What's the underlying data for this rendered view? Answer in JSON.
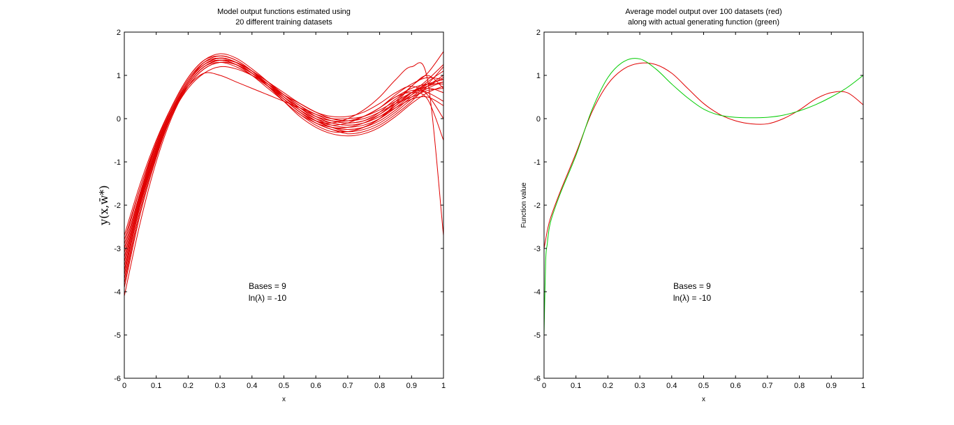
{
  "chart_data": [
    {
      "type": "line",
      "title_lines": [
        "Model output functions estimated using",
        "20 different training datasets"
      ],
      "xlabel": "x",
      "ylabel": "y(x,w̄*)",
      "xlim": [
        0,
        1
      ],
      "ylim": [
        -6,
        2
      ],
      "xticks": [
        0,
        0.1,
        0.2,
        0.3,
        0.4,
        0.5,
        0.6,
        0.7,
        0.8,
        0.9,
        1
      ],
      "xtick_labels": [
        "0",
        "0.1",
        "0.2",
        "0.3",
        "0.4",
        "0.5",
        "0.6",
        "0.7",
        "0.8",
        "0.9",
        "1"
      ],
      "yticks": [
        -6,
        -5,
        -4,
        -3,
        -2,
        -1,
        0,
        1,
        2
      ],
      "ytick_labels": [
        "-6",
        "-5",
        "-4",
        "-3",
        "-2",
        "-1",
        "0",
        "1",
        "2"
      ],
      "grid": false,
      "annotations": [
        "Bases = 9",
        "ln(λ) = -10"
      ],
      "series_color": "#e00000",
      "x": [
        0,
        0.05,
        0.1,
        0.15,
        0.2,
        0.25,
        0.3,
        0.35,
        0.4,
        0.45,
        0.5,
        0.55,
        0.6,
        0.65,
        0.7,
        0.75,
        0.8,
        0.85,
        0.9,
        0.95,
        1
      ],
      "series": [
        {
          "values": [
            -3.9,
            -2.2,
            -0.9,
            0.15,
            0.85,
            1.25,
            1.35,
            1.25,
            1.05,
            0.8,
            0.5,
            0.25,
            0.05,
            -0.05,
            -0.1,
            -0.05,
            0.15,
            0.45,
            0.65,
            0.6,
            0.4
          ]
        },
        {
          "values": [
            -2.7,
            -1.5,
            -0.5,
            0.3,
            0.95,
            1.35,
            1.45,
            1.35,
            1.1,
            0.8,
            0.45,
            0.15,
            -0.05,
            -0.15,
            -0.1,
            0.05,
            0.25,
            0.5,
            0.7,
            0.8,
            0.8
          ]
        },
        {
          "values": [
            -3.3,
            -1.9,
            -0.7,
            0.2,
            0.85,
            1.25,
            1.4,
            1.3,
            1.05,
            0.75,
            0.45,
            0.15,
            -0.05,
            -0.1,
            0.0,
            0.2,
            0.5,
            0.9,
            1.2,
            0.9,
            -2.7
          ]
        },
        {
          "values": [
            -4.1,
            -2.4,
            -1.0,
            0.05,
            0.75,
            1.15,
            1.3,
            1.25,
            1.05,
            0.8,
            0.55,
            0.35,
            0.15,
            0.0,
            -0.05,
            0.05,
            0.25,
            0.5,
            0.6,
            0.45,
            -0.5
          ]
        },
        {
          "values": [
            -3.0,
            -1.7,
            -0.6,
            0.25,
            0.9,
            1.3,
            1.4,
            1.3,
            1.05,
            0.75,
            0.4,
            0.1,
            -0.15,
            -0.3,
            -0.3,
            -0.2,
            0.0,
            0.35,
            0.75,
            1.05,
            1.55
          ]
        },
        {
          "values": [
            -3.6,
            -2.0,
            -0.8,
            0.1,
            0.75,
            1.15,
            1.3,
            1.25,
            1.05,
            0.8,
            0.55,
            0.3,
            0.1,
            -0.05,
            -0.1,
            -0.05,
            0.1,
            0.35,
            0.6,
            0.8,
            1.2
          ]
        },
        {
          "values": [
            -3.2,
            -1.8,
            -0.7,
            0.2,
            0.85,
            1.25,
            1.35,
            1.25,
            1.0,
            0.7,
            0.4,
            0.1,
            -0.1,
            -0.25,
            -0.35,
            -0.3,
            -0.15,
            0.1,
            0.4,
            0.75,
            1.0
          ]
        },
        {
          "values": [
            -3.8,
            -2.1,
            -0.85,
            0.1,
            0.8,
            1.2,
            1.35,
            1.3,
            1.1,
            0.85,
            0.55,
            0.3,
            0.05,
            -0.1,
            -0.15,
            -0.1,
            0.05,
            0.3,
            0.55,
            0.75,
            0.95
          ]
        },
        {
          "values": [
            -2.9,
            -1.6,
            -0.55,
            0.3,
            0.95,
            1.35,
            1.5,
            1.4,
            1.15,
            0.85,
            0.5,
            0.2,
            -0.05,
            -0.2,
            -0.25,
            -0.2,
            -0.05,
            0.2,
            0.5,
            0.7,
            0.6
          ]
        },
        {
          "values": [
            -3.5,
            -2.0,
            -0.8,
            0.1,
            0.7,
            1.05,
            1.2,
            1.15,
            1.0,
            0.8,
            0.55,
            0.35,
            0.15,
            0.0,
            -0.05,
            0.0,
            0.15,
            0.35,
            0.5,
            0.65,
            0.7
          ]
        },
        {
          "values": [
            -3.4,
            -1.9,
            -0.75,
            0.15,
            0.8,
            1.2,
            1.35,
            1.3,
            1.1,
            0.8,
            0.5,
            0.2,
            -0.05,
            -0.2,
            -0.3,
            -0.25,
            -0.1,
            0.15,
            0.45,
            0.7,
            0.85
          ]
        },
        {
          "values": [
            -3.1,
            -1.75,
            -0.65,
            0.2,
            0.85,
            1.3,
            1.45,
            1.35,
            1.1,
            0.75,
            0.4,
            0.05,
            -0.2,
            -0.35,
            -0.4,
            -0.35,
            -0.2,
            0.05,
            0.35,
            0.6,
            0.75
          ]
        },
        {
          "values": [
            -3.7,
            -2.1,
            -0.85,
            0.1,
            0.8,
            1.2,
            1.35,
            1.3,
            1.1,
            0.85,
            0.6,
            0.35,
            0.15,
            0.05,
            0.05,
            0.15,
            0.35,
            0.6,
            0.75,
            0.55,
            0.0
          ]
        },
        {
          "values": [
            -2.8,
            -1.6,
            -0.6,
            0.2,
            0.75,
            1.05,
            1.0,
            0.85,
            0.7,
            0.55,
            0.4,
            0.25,
            0.1,
            0.0,
            0.0,
            0.05,
            0.2,
            0.4,
            0.6,
            0.75,
            0.85
          ]
        },
        {
          "values": [
            -3.3,
            -1.85,
            -0.7,
            0.2,
            0.85,
            1.25,
            1.4,
            1.3,
            1.05,
            0.75,
            0.45,
            0.15,
            -0.1,
            -0.25,
            -0.3,
            -0.2,
            0.0,
            0.3,
            0.6,
            0.9,
            1.25
          ]
        },
        {
          "values": [
            -3.6,
            -2.0,
            -0.8,
            0.15,
            0.8,
            1.2,
            1.3,
            1.2,
            1.0,
            0.75,
            0.5,
            0.25,
            0.05,
            -0.05,
            -0.05,
            0.05,
            0.25,
            0.55,
            0.8,
            0.95,
            0.9
          ]
        },
        {
          "values": [
            -3.0,
            -1.7,
            -0.6,
            0.25,
            0.9,
            1.3,
            1.4,
            1.3,
            1.05,
            0.75,
            0.45,
            0.2,
            0.0,
            -0.1,
            -0.15,
            -0.1,
            0.05,
            0.25,
            0.45,
            0.5,
            0.3
          ]
        },
        {
          "values": [
            -3.9,
            -2.2,
            -0.9,
            0.1,
            0.8,
            1.2,
            1.35,
            1.3,
            1.1,
            0.85,
            0.55,
            0.25,
            0.0,
            -0.15,
            -0.2,
            -0.15,
            0.0,
            0.25,
            0.55,
            0.85,
            1.1
          ]
        },
        {
          "values": [
            -3.2,
            -1.8,
            -0.7,
            0.2,
            0.85,
            1.25,
            1.35,
            1.25,
            1.05,
            0.8,
            0.5,
            0.2,
            -0.05,
            -0.2,
            -0.2,
            -0.1,
            0.1,
            0.4,
            0.75,
            1.0,
            0.7
          ]
        },
        {
          "values": [
            -3.5,
            -1.95,
            -0.75,
            0.15,
            0.85,
            1.25,
            1.4,
            1.3,
            1.05,
            0.75,
            0.45,
            0.15,
            -0.1,
            -0.2,
            -0.25,
            -0.2,
            0.0,
            0.3,
            0.6,
            0.8,
            0.9
          ]
        }
      ]
    },
    {
      "type": "line",
      "title_lines": [
        "Average model output over 100 datasets (red)",
        "along with actual generating function (green)"
      ],
      "xlabel": "x",
      "ylabel": "Function value",
      "xlim": [
        0,
        1
      ],
      "ylim": [
        -6,
        2
      ],
      "xticks": [
        0,
        0.1,
        0.2,
        0.3,
        0.4,
        0.5,
        0.6,
        0.7,
        0.8,
        0.9,
        1
      ],
      "xtick_labels": [
        "0",
        "0.1",
        "0.2",
        "0.3",
        "0.4",
        "0.5",
        "0.6",
        "0.7",
        "0.8",
        "0.9",
        "1"
      ],
      "yticks": [
        -6,
        -5,
        -4,
        -3,
        -2,
        -1,
        0,
        1,
        2
      ],
      "ytick_labels": [
        "-6",
        "-5",
        "-4",
        "-3",
        "-2",
        "-1",
        "0",
        "1",
        "2"
      ],
      "grid": false,
      "annotations": [
        "Bases = 9",
        "ln(λ) = -10"
      ],
      "x": [
        0,
        0.005,
        0.01,
        0.02,
        0.05,
        0.1,
        0.15,
        0.2,
        0.25,
        0.3,
        0.35,
        0.4,
        0.45,
        0.5,
        0.55,
        0.6,
        0.65,
        0.7,
        0.75,
        0.8,
        0.85,
        0.9,
        0.95,
        1
      ],
      "series": [
        {
          "color": "#e00000",
          "values": [
            -3.0,
            -2.8,
            -2.6,
            -2.3,
            -1.7,
            -0.8,
            0.15,
            0.8,
            1.15,
            1.28,
            1.25,
            1.05,
            0.7,
            0.35,
            0.1,
            -0.05,
            -0.12,
            -0.12,
            0.0,
            0.2,
            0.45,
            0.6,
            0.6,
            0.32
          ]
        },
        {
          "color": "#00cc00",
          "values": [
            -5.0,
            -3.3,
            -2.9,
            -2.4,
            -1.75,
            -0.85,
            0.2,
            0.95,
            1.32,
            1.38,
            1.15,
            0.8,
            0.48,
            0.22,
            0.08,
            0.03,
            0.02,
            0.03,
            0.08,
            0.18,
            0.32,
            0.5,
            0.72,
            1.0
          ]
        }
      ]
    }
  ]
}
